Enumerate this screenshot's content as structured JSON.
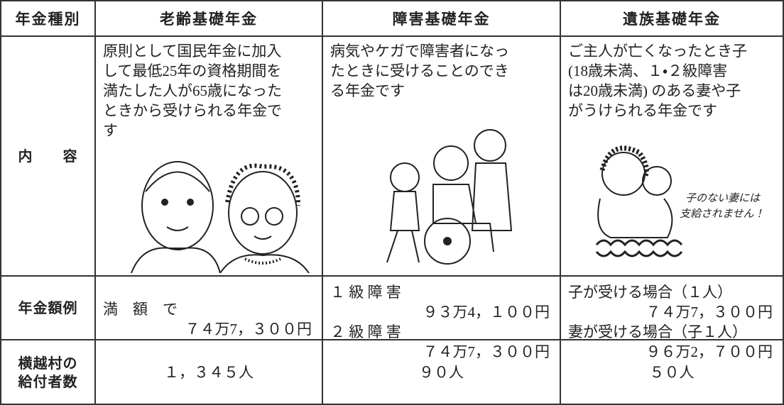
{
  "table": {
    "header": [
      "年金種別",
      "老齢基礎年金",
      "障害基礎年金",
      "遺族基礎年金"
    ],
    "rows": [
      [
        [
          "内　　容"
        ],
        [
          "原則として国民年金に加入",
          "して最低25年の資格期間を",
          "満たした人が65歳になった",
          "ときから受けられる年金で",
          "す"
        ],
        [
          "病気やケガで障害者になっ",
          "たときに受けることのでき",
          "る年金です"
        ],
        [
          "ご主人が亡くなったとき子",
          "(18歳未満、１・２級障害",
          "は20歳未満) のある妻や子",
          "がうけられる年金です"
        ]
      ],
      [
        [
          "年金額例"
        ],
        [
          "満　額　で",
          "７４万7，３００円"
        ],
        [
          "１ 級 障 害",
          "９３万4，１００円",
          "２ 級 障 害",
          "７４万7，３００円"
        ],
        [
          "子が受ける場合（１人）",
          "７４万7，３００円",
          "妻が受ける場合（子１人）",
          "９６万2，７００円"
        ]
      ],
      [
        [
          "横越村の",
          "給付者数"
        ],
        [
          "１，３４５人"
        ],
        [
          "９０人"
        ],
        [
          "５０人"
        ]
      ]
    ],
    "annotation": [
      "子のない妻には",
      "支給されません！"
    ]
  }
}
